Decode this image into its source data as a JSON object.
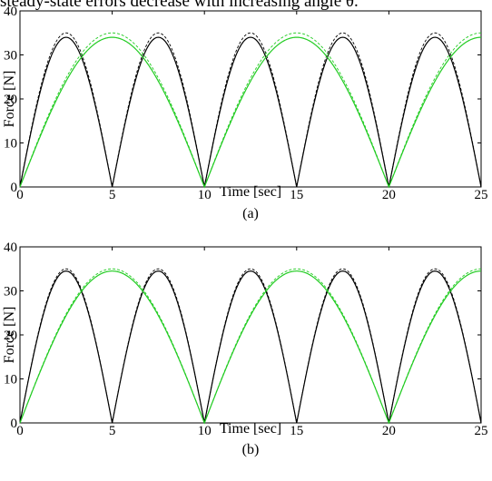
{
  "caption_fragment": "steady-state errors decrease with increasing angle θ.",
  "colors": {
    "black_series": "#000000",
    "green_series": "#22cc22",
    "axis": "#000000"
  },
  "chart_data": [
    {
      "type": "line",
      "panel_label": "(a)",
      "xlabel": "Time [sec]",
      "ylabel": "Force [N]",
      "xlim": [
        0,
        25
      ],
      "ylim": [
        0,
        40
      ],
      "xticks": [
        0,
        5,
        10,
        15,
        20,
        25
      ],
      "yticks": [
        0,
        10,
        20,
        30,
        40
      ],
      "grid": false,
      "series": [
        {
          "color": "black",
          "style": "solid",
          "shape": "rectified-sine",
          "period": 5,
          "phase": 0,
          "amplitude": 34
        },
        {
          "color": "black",
          "style": "dashed",
          "shape": "rectified-sine",
          "period": 5,
          "phase": 0,
          "amplitude": 35
        },
        {
          "color": "green",
          "style": "solid",
          "shape": "rectified-sine",
          "period": 10,
          "phase": 0,
          "amplitude": 34
        },
        {
          "color": "green",
          "style": "dashed",
          "shape": "rectified-sine",
          "period": 10,
          "phase": 0,
          "amplitude": 35
        }
      ]
    },
    {
      "type": "line",
      "panel_label": "(b)",
      "xlabel": "Time [sec]",
      "ylabel": "Force [N]",
      "xlim": [
        0,
        25
      ],
      "ylim": [
        0,
        40
      ],
      "xticks": [
        0,
        5,
        10,
        15,
        20,
        25
      ],
      "yticks": [
        0,
        10,
        20,
        30,
        40
      ],
      "grid": false,
      "series": [
        {
          "color": "black",
          "style": "solid",
          "shape": "rectified-sine",
          "period": 5,
          "phase": 0,
          "amplitude": 34.5
        },
        {
          "color": "black",
          "style": "dashed",
          "shape": "rectified-sine",
          "period": 5,
          "phase": 0,
          "amplitude": 35
        },
        {
          "color": "green",
          "style": "solid",
          "shape": "rectified-sine",
          "period": 10,
          "phase": 0,
          "amplitude": 34.5
        },
        {
          "color": "green",
          "style": "dashed",
          "shape": "rectified-sine",
          "period": 10,
          "phase": 0,
          "amplitude": 35
        }
      ]
    }
  ]
}
